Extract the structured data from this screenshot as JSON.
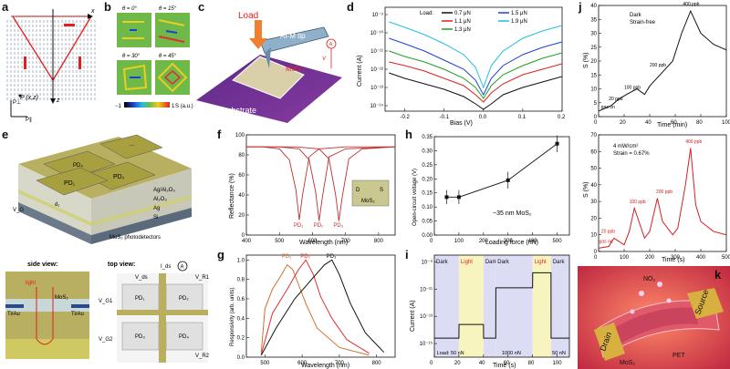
{
  "panels": {
    "a": {
      "label": "a",
      "x_axis": "x",
      "z_axis": "z",
      "point": "P (x,z)",
      "p_perp": "P⊥",
      "p_par": "P∥"
    },
    "b": {
      "label": "b",
      "angles": [
        "θ = 0°",
        "θ = 15°",
        "θ = 30°",
        "θ = 45°"
      ],
      "colorbar": {
        "min": "−1",
        "max": "1",
        "unit": "S (a.u.)"
      }
    },
    "c": {
      "label": "c",
      "load": "Load",
      "afm_tip": "AFM tip",
      "mos2": "MoS₂",
      "substrate": "Pt substrate",
      "v": "V",
      "a": "A"
    },
    "d": {
      "label": "d",
      "xlabel": "Bias (V)",
      "ylabel": "Current (A)",
      "xticks": [
        "-0.2",
        "-0.1",
        "0.0",
        "0.1",
        "0.2"
      ],
      "yticks": [
        "10⁻⁹",
        "10⁻¹⁰",
        "10⁻¹¹",
        "10⁻¹²",
        "10⁻¹³",
        "10⁻¹⁴"
      ],
      "legend_title": "Load:",
      "colors": {
        "s07": "#111111",
        "s11": "#e02020",
        "s13": "#20a020",
        "s15": "#2040d0",
        "s19": "#20c0e0"
      }
    },
    "e": {
      "label": "e",
      "pd": [
        "PD₁",
        "PD₂",
        "PD₃",
        "PD₄"
      ],
      "dots": "...",
      "layers": [
        "Ag/Al₂O₃",
        "Al₂O₃",
        "Ag",
        "Si"
      ],
      "d1": "d₁",
      "vg": "V_G",
      "photodetectors": "MoS₂ photodetectors",
      "side_view": "side view:",
      "top_view": "top view:",
      "light": "light",
      "mos2": "MoS₂",
      "tiau_left": "Ti/Au",
      "tiau_right": "Ti/Au",
      "ids": "I_ds",
      "vds": "V_ds",
      "vg_row1": "V_G1",
      "vg_row2": "V_G2",
      "vr_row1": "V_R1",
      "vr_row2": "V_R2",
      "top_pds": [
        "PD₁",
        "PD₂",
        "PD₃",
        "PD₄"
      ],
      "ammeter": "A"
    },
    "f": {
      "label": "f",
      "xlabel": "Wavelength (nm)",
      "ylabel": "Reflectance (%)",
      "xticks": [
        "400",
        "500",
        "600",
        "700",
        "800"
      ],
      "yticks": [
        "0",
        "20",
        "40",
        "60",
        "80",
        "100"
      ],
      "pd_labels": [
        "PD₁",
        "PD₂",
        "PD₃"
      ],
      "inset": {
        "d": "D",
        "s": "S",
        "mos2": "MoS₂"
      }
    },
    "g": {
      "label": "g",
      "xlabel": "Wavelength (nm)",
      "ylabel": "Responsivity (arb. units)",
      "xticks": [
        "500",
        "600",
        "700",
        "800"
      ],
      "yticks": [
        "0.0",
        "0.2",
        "0.4",
        "0.6",
        "0.8",
        "1.0"
      ],
      "pd_labels": [
        "PD₁",
        "PD₂",
        "PD₃"
      ]
    },
    "h": {
      "label": "h",
      "xlabel": "Loading force (nN)",
      "ylabel": "Open-circuit voltage (V)",
      "xticks": [
        "0",
        "100",
        "200",
        "300",
        "400",
        "500"
      ],
      "yticks": [
        "0.00",
        "0.05",
        "0.10",
        "0.15",
        "0.20",
        "0.25",
        "0.30",
        "0.35"
      ],
      "annotation": "~35 nm MoS₂"
    },
    "i": {
      "label": "i",
      "xlabel": "Time (s)",
      "ylabel": "Current (A)",
      "xticks": [
        "0",
        "20",
        "40",
        "60",
        "80",
        "100"
      ],
      "yticks": [
        "10⁻⁹",
        "10⁻¹¹",
        "10⁻¹³",
        "10⁻¹⁵"
      ],
      "regions": [
        "Dark",
        "Light",
        "Dark",
        "Dark",
        "Light",
        "Dark"
      ],
      "loads": [
        "Load: 50 nN",
        "1000 nN",
        "50 nN"
      ]
    },
    "j": {
      "label": "j",
      "top": {
        "ylabel": "S (%)",
        "xlabel": "Time (min)",
        "title1": "Dark",
        "title2": "Strain-free",
        "xticks": [
          "0",
          "20",
          "40",
          "60",
          "80",
          "100"
        ],
        "yticks": [
          "0",
          "5",
          "10",
          "15",
          "20",
          "25",
          "30",
          "35",
          "40"
        ],
        "annots": [
          "gas on",
          "20 ppb",
          "100 ppb",
          "200 ppb",
          "400 ppb"
        ]
      },
      "bottom": {
        "ylabel": "S (%)",
        "xlabel": "Time (s)",
        "cond1": "4 mW/cm²",
        "cond2": "Strain = 0.67%",
        "xticks": [
          "0",
          "100",
          "200",
          "300",
          "400",
          "500"
        ],
        "yticks": [
          "0",
          "10",
          "20",
          "30",
          "40",
          "50",
          "60",
          "70"
        ],
        "annots": [
          "gas on",
          "20 ppb",
          "100 ppb",
          "200 ppb",
          "400 ppb"
        ]
      }
    },
    "k": {
      "label": "k",
      "no2": "NO₂",
      "source": "Source",
      "drain": "Drain",
      "mos2": "MoS₂",
      "pet": "PET"
    }
  },
  "chart_data": [
    {
      "type": "line",
      "panel": "d",
      "xlabel": "Bias (V)",
      "ylabel": "Current (A)",
      "xlim": [
        -0.25,
        0.2
      ],
      "y_scale": "log",
      "y_units": "log10 A",
      "ylim": [
        -14.3,
        -8.6
      ],
      "legend_title": "Load:",
      "series": [
        {
          "name": "0.7 μN",
          "color": "#111111",
          "x": [
            -0.24,
            -0.2,
            -0.15,
            -0.1,
            -0.05,
            -0.02,
            0,
            0.02,
            0.05,
            0.1,
            0.15,
            0.2
          ],
          "y": [
            -12.2,
            -12.5,
            -12.8,
            -13.1,
            -13.5,
            -13.9,
            -14.2,
            -13.9,
            -13.4,
            -13.0,
            -12.7,
            -12.4
          ]
        },
        {
          "name": "1.1 μN",
          "color": "#e02020",
          "x": [
            -0.24,
            -0.2,
            -0.15,
            -0.1,
            -0.05,
            -0.02,
            0,
            0.02,
            0.05,
            0.1,
            0.15,
            0.2
          ],
          "y": [
            -11.6,
            -11.8,
            -12.1,
            -12.5,
            -12.9,
            -13.4,
            -13.8,
            -13.3,
            -12.8,
            -12.3,
            -12.0,
            -11.7
          ]
        },
        {
          "name": "1.3 μN",
          "color": "#20a020",
          "x": [
            -0.24,
            -0.2,
            -0.15,
            -0.1,
            -0.05,
            -0.02,
            0,
            0.02,
            0.05,
            0.1,
            0.15,
            0.2
          ],
          "y": [
            -11.0,
            -11.3,
            -11.6,
            -12.0,
            -12.5,
            -13.0,
            -13.6,
            -12.9,
            -12.3,
            -11.8,
            -11.4,
            -11.1
          ]
        },
        {
          "name": "1.5 μN",
          "color": "#2040d0",
          "x": [
            -0.24,
            -0.2,
            -0.15,
            -0.1,
            -0.05,
            -0.02,
            0,
            0.02,
            0.05,
            0.1,
            0.15,
            0.2
          ],
          "y": [
            -10.3,
            -10.6,
            -11.0,
            -11.5,
            -12.0,
            -12.6,
            -13.4,
            -12.5,
            -11.8,
            -11.2,
            -10.8,
            -10.5
          ]
        },
        {
          "name": "1.9 μN",
          "color": "#20c0e0",
          "x": [
            -0.24,
            -0.2,
            -0.15,
            -0.1,
            -0.05,
            -0.02,
            0,
            0.02,
            0.05,
            0.1,
            0.15,
            0.2
          ],
          "y": [
            -9.4,
            -9.7,
            -10.1,
            -10.6,
            -11.2,
            -11.9,
            -13.0,
            -11.8,
            -11.0,
            -10.3,
            -9.9,
            -9.6
          ]
        }
      ]
    },
    {
      "type": "line",
      "panel": "f",
      "xlabel": "Wavelength (nm)",
      "ylabel": "Reflectance (%)",
      "xlim": [
        400,
        850
      ],
      "ylim": [
        0,
        100
      ],
      "series": [
        {
          "name": "PD₁",
          "color": "#c03030",
          "x": [
            400,
            450,
            500,
            530,
            550,
            560,
            570,
            590,
            620,
            700,
            850
          ],
          "y": [
            88,
            88,
            86,
            75,
            45,
            15,
            40,
            78,
            86,
            88,
            88
          ]
        },
        {
          "name": "PD₂",
          "color": "#c03030",
          "x": [
            400,
            500,
            560,
            590,
            610,
            620,
            630,
            650,
            700,
            850
          ],
          "y": [
            88,
            88,
            86,
            75,
            42,
            14,
            38,
            78,
            86,
            88
          ]
        },
        {
          "name": "PD₃",
          "color": "#c03030",
          "x": [
            400,
            550,
            620,
            650,
            670,
            680,
            690,
            710,
            750,
            850
          ],
          "y": [
            88,
            88,
            86,
            76,
            40,
            14,
            38,
            76,
            86,
            88
          ]
        }
      ]
    },
    {
      "type": "line",
      "panel": "g",
      "xlabel": "Wavelength (nm)",
      "ylabel": "Responsivity (arb. units)",
      "xlim": [
        450,
        850
      ],
      "ylim": [
        0,
        1.05
      ],
      "series": [
        {
          "name": "PD₁",
          "color": "#d07030",
          "x": [
            490,
            500,
            520,
            540,
            560,
            575,
            590,
            610,
            640,
            700,
            780
          ],
          "y": [
            0.05,
            0.5,
            0.7,
            0.82,
            0.95,
            0.9,
            0.75,
            0.55,
            0.3,
            0.1,
            0.02
          ]
        },
        {
          "name": "PD₂",
          "color": "#e03030",
          "x": [
            490,
            520,
            560,
            590,
            610,
            630,
            650,
            680,
            720,
            780
          ],
          "y": [
            0.03,
            0.45,
            0.7,
            0.9,
            1.0,
            0.85,
            0.62,
            0.4,
            0.18,
            0.04
          ]
        },
        {
          "name": "PD₃",
          "color": "#111111",
          "x": [
            490,
            530,
            580,
            630,
            660,
            680,
            700,
            730,
            770,
            820
          ],
          "y": [
            0.02,
            0.3,
            0.6,
            0.82,
            0.95,
            1.0,
            0.85,
            0.55,
            0.25,
            0.05
          ]
        }
      ]
    },
    {
      "type": "line",
      "panel": "h",
      "xlabel": "Loading force (nN)",
      "ylabel": "Open-circuit voltage (V)",
      "xlim": [
        0,
        550
      ],
      "ylim": [
        0,
        0.35
      ],
      "series": [
        {
          "name": "",
          "color": "#111111",
          "x": [
            50,
            100,
            300,
            500
          ],
          "y": [
            0.135,
            0.135,
            0.195,
            0.325
          ],
          "err": [
            0.025,
            0.025,
            0.03,
            0.03
          ]
        }
      ]
    },
    {
      "type": "line",
      "panel": "i",
      "xlabel": "Time (s)",
      "ylabel": "Current (A)",
      "xlim": [
        0,
        110
      ],
      "y_scale": "log",
      "y_units": "log10 A",
      "ylim": [
        -16,
        -8.5
      ],
      "series": [
        {
          "name": "",
          "color": "#111111",
          "x": [
            0,
            20,
            20.1,
            40,
            40.1,
            50,
            50.1,
            80,
            80.1,
            95,
            95.1,
            110
          ],
          "y": [
            -14.6,
            -14.6,
            -13.6,
            -13.6,
            -14.6,
            -14.6,
            -10.9,
            -10.9,
            -9.8,
            -9.8,
            -14.6,
            -14.6
          ]
        }
      ]
    },
    {
      "type": "line",
      "panel": "j-top",
      "xlabel": "Time (min)",
      "ylabel": "S (%)",
      "xlim": [
        0,
        100
      ],
      "ylim": [
        0,
        40
      ],
      "series": [
        {
          "name": "",
          "color": "#111111",
          "x": [
            0,
            10,
            15,
            22,
            30,
            36,
            40,
            50,
            58,
            65,
            72,
            80,
            90,
            100
          ],
          "y": [
            2,
            4,
            6,
            8,
            10,
            8,
            11,
            16,
            20,
            30,
            38,
            30,
            26,
            24
          ]
        }
      ]
    },
    {
      "type": "line",
      "panel": "j-bottom",
      "xlabel": "Time (s)",
      "ylabel": "S (%)",
      "xlim": [
        0,
        500
      ],
      "ylim": [
        0,
        70
      ],
      "series": [
        {
          "name": "",
          "color": "#d02020",
          "x": [
            0,
            40,
            60,
            100,
            120,
            140,
            180,
            200,
            230,
            250,
            290,
            310,
            340,
            360,
            380,
            400,
            450,
            500
          ],
          "y": [
            2,
            3,
            8,
            4,
            12,
            26,
            8,
            12,
            32,
            18,
            10,
            14,
            40,
            62,
            28,
            18,
            12,
            10
          ]
        }
      ]
    }
  ]
}
